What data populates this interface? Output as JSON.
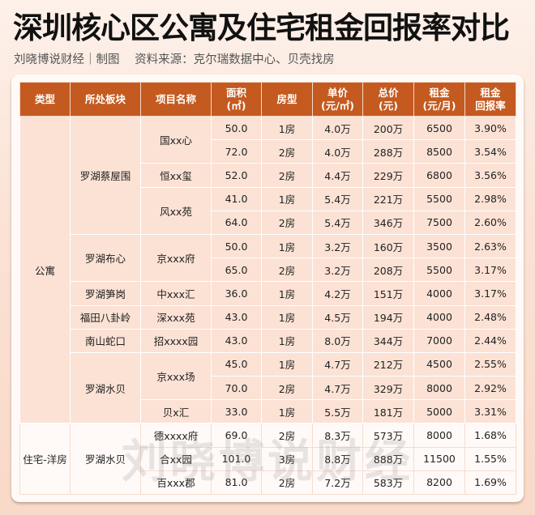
{
  "title": "深圳核心区公寓及住宅租金回报率对比",
  "subtitle": {
    "author": "刘晓博说财经｜制图",
    "source": "资料来源：克尔瑞数据中心、贝壳找房"
  },
  "watermark": "刘晓博说财经",
  "table": {
    "headers": [
      "类型",
      "所处板块",
      "项目名称",
      "面积\n(㎡)",
      "房型",
      "单价\n(元/㎡)",
      "总价\n(元)",
      "租金\n(元/月)",
      "租金\n回报率"
    ],
    "groups": [
      {
        "type": "公寓",
        "style": "apt",
        "areas": [
          {
            "area": "罗湖蔡屋围",
            "projects": [
              {
                "name": "国xx心",
                "units": [
                  [
                    "50.0",
                    "1房",
                    "4.0万",
                    "200万",
                    "6500",
                    "3.90%"
                  ],
                  [
                    "72.0",
                    "2房",
                    "4.0万",
                    "288万",
                    "8500",
                    "3.54%"
                  ]
                ]
              },
              {
                "name": "恒xx玺",
                "units": [
                  [
                    "52.0",
                    "2房",
                    "4.4万",
                    "229万",
                    "6800",
                    "3.56%"
                  ]
                ]
              },
              {
                "name": "风xx苑",
                "units": [
                  [
                    "41.0",
                    "1房",
                    "5.4万",
                    "221万",
                    "5500",
                    "2.98%"
                  ],
                  [
                    "64.0",
                    "2房",
                    "5.4万",
                    "346万",
                    "7500",
                    "2.60%"
                  ]
                ]
              }
            ]
          },
          {
            "area": "罗湖布心",
            "projects": [
              {
                "name": "京xxx府",
                "units": [
                  [
                    "50.0",
                    "1房",
                    "3.2万",
                    "160万",
                    "3500",
                    "2.63%"
                  ],
                  [
                    "65.0",
                    "2房",
                    "3.2万",
                    "208万",
                    "5500",
                    "3.17%"
                  ]
                ]
              }
            ]
          },
          {
            "area": "罗湖笋岗",
            "projects": [
              {
                "name": "中xxx汇",
                "units": [
                  [
                    "36.0",
                    "1房",
                    "4.2万",
                    "151万",
                    "4000",
                    "3.17%"
                  ]
                ]
              }
            ]
          },
          {
            "area": "福田八卦岭",
            "projects": [
              {
                "name": "深xxx苑",
                "units": [
                  [
                    "43.0",
                    "1房",
                    "4.5万",
                    "194万",
                    "4000",
                    "2.48%"
                  ]
                ]
              }
            ]
          },
          {
            "area": "南山蛇口",
            "projects": [
              {
                "name": "招xxxx园",
                "units": [
                  [
                    "43.0",
                    "1房",
                    "8.0万",
                    "344万",
                    "7000",
                    "2.44%"
                  ]
                ]
              }
            ]
          },
          {
            "area": "罗湖水贝",
            "projects": [
              {
                "name": "京xxx场",
                "units": [
                  [
                    "45.0",
                    "1房",
                    "4.7万",
                    "212万",
                    "4500",
                    "2.55%"
                  ],
                  [
                    "70.0",
                    "2房",
                    "4.7万",
                    "329万",
                    "8000",
                    "2.92%"
                  ]
                ]
              },
              {
                "name": "贝x汇",
                "units": [
                  [
                    "33.0",
                    "1房",
                    "5.5万",
                    "181万",
                    "5000",
                    "3.31%"
                  ]
                ]
              }
            ]
          }
        ]
      },
      {
        "type": "住宅-洋房",
        "style": "res",
        "areas": [
          {
            "area": "罗湖水贝",
            "projects": [
              {
                "name": "德xxxx府",
                "units": [
                  [
                    "69.0",
                    "2房",
                    "8.3万",
                    "573万",
                    "8000",
                    "1.68%"
                  ]
                ]
              },
              {
                "name": "合xx园",
                "units": [
                  [
                    "101.0",
                    "3房",
                    "8.8万",
                    "888万",
                    "11500",
                    "1.55%"
                  ]
                ]
              },
              {
                "name": "百xxx郡",
                "units": [
                  [
                    "81.0",
                    "2房",
                    "7.2万",
                    "583万",
                    "8200",
                    "1.69%"
                  ]
                ]
              }
            ]
          }
        ]
      }
    ]
  }
}
